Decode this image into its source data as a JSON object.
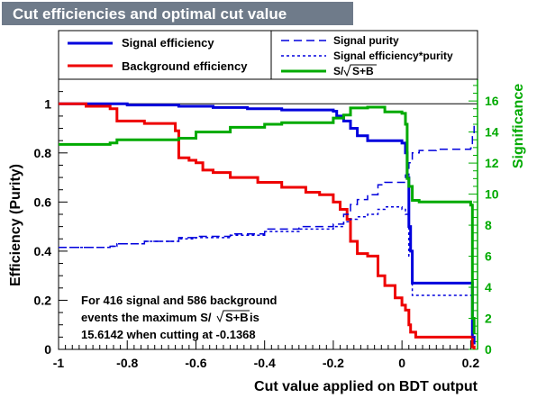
{
  "header": {
    "title": "Cut efficiencies and optimal cut value"
  },
  "legend": {
    "signal_efficiency": "Signal efficiency",
    "background_efficiency": "Background efficiency",
    "signal_purity": "Signal purity",
    "signal_eff_purity": "Signal efficiency*purity",
    "significance_prefix": "S/",
    "significance_root": "S+B"
  },
  "annotation": {
    "line1": "For 416 signal and 586 background",
    "line2_prefix": "events the maximum S/",
    "line2_root": "S+B",
    "line2_suffix": " is",
    "line3": "15.6142 when cutting at -0.1368"
  },
  "colors": {
    "signal": "#0000dd",
    "background": "#ee0000",
    "significance": "#00aa00",
    "title_bg": "#6f7b8a",
    "title_text": "#ffffff"
  },
  "chart_data": {
    "type": "line",
    "xlabel": "Cut value applied on BDT output",
    "ylabel_left": "Efficiency (Purity)",
    "ylabel_right": "Significance",
    "xlim": [
      -1,
      0.22
    ],
    "ylim_left": [
      0,
      1.1
    ],
    "ylim_right": [
      0,
      17.4
    ],
    "xticks": [
      "-1",
      "-0.8",
      "-0.6",
      "-0.4",
      "-0.2",
      "0",
      "0.2"
    ],
    "yticks_left": [
      "0",
      "0.2",
      "0.4",
      "0.6",
      "0.8",
      "1"
    ],
    "yticks_right": [
      "0",
      "2",
      "4",
      "6",
      "8",
      "10",
      "12",
      "14",
      "16"
    ],
    "series": [
      {
        "name": "Signal efficiency",
        "axis": "left",
        "style": "solid",
        "points": [
          [
            -1,
            1
          ],
          [
            -0.9,
            1
          ],
          [
            -0.8,
            0.995
          ],
          [
            -0.65,
            0.99
          ],
          [
            -0.55,
            0.985
          ],
          [
            -0.45,
            0.98
          ],
          [
            -0.35,
            0.975
          ],
          [
            -0.25,
            0.975
          ],
          [
            -0.2,
            0.97
          ],
          [
            -0.19,
            0.95
          ],
          [
            -0.17,
            0.93
          ],
          [
            -0.15,
            0.9
          ],
          [
            -0.13,
            0.87
          ],
          [
            -0.1,
            0.85
          ],
          [
            -0.05,
            0.85
          ],
          [
            0,
            0.84
          ],
          [
            0.01,
            0.8
          ],
          [
            0.015,
            0.7
          ],
          [
            0.02,
            0.5
          ],
          [
            0.025,
            0.4
          ],
          [
            0.03,
            0.27
          ],
          [
            0.2,
            0.27
          ],
          [
            0.205,
            0.05
          ],
          [
            0.21,
            0.02
          ]
        ]
      },
      {
        "name": "Background efficiency",
        "axis": "left",
        "style": "solid",
        "points": [
          [
            -1,
            1
          ],
          [
            -0.92,
            0.99
          ],
          [
            -0.85,
            0.98
          ],
          [
            -0.83,
            0.93
          ],
          [
            -0.75,
            0.92
          ],
          [
            -0.66,
            0.89
          ],
          [
            -0.65,
            0.78
          ],
          [
            -0.62,
            0.77
          ],
          [
            -0.6,
            0.76
          ],
          [
            -0.58,
            0.73
          ],
          [
            -0.55,
            0.72
          ],
          [
            -0.5,
            0.7
          ],
          [
            -0.42,
            0.68
          ],
          [
            -0.35,
            0.66
          ],
          [
            -0.28,
            0.64
          ],
          [
            -0.24,
            0.63
          ],
          [
            -0.2,
            0.6
          ],
          [
            -0.18,
            0.57
          ],
          [
            -0.16,
            0.53
          ],
          [
            -0.15,
            0.44
          ],
          [
            -0.13,
            0.39
          ],
          [
            -0.1,
            0.38
          ],
          [
            -0.07,
            0.3
          ],
          [
            -0.05,
            0.26
          ],
          [
            -0.02,
            0.21
          ],
          [
            0,
            0.18
          ],
          [
            0.01,
            0.16
          ],
          [
            0.02,
            0.1
          ],
          [
            0.025,
            0.07
          ],
          [
            0.04,
            0.05
          ],
          [
            0.2,
            0.05
          ],
          [
            0.205,
            0.01
          ],
          [
            0.21,
            0
          ]
        ]
      },
      {
        "name": "Signal purity",
        "axis": "left",
        "style": "dashed",
        "points": [
          [
            -1,
            0.415
          ],
          [
            -0.85,
            0.42
          ],
          [
            -0.83,
            0.43
          ],
          [
            -0.75,
            0.44
          ],
          [
            -0.65,
            0.455
          ],
          [
            -0.6,
            0.46
          ],
          [
            -0.5,
            0.47
          ],
          [
            -0.4,
            0.49
          ],
          [
            -0.3,
            0.5
          ],
          [
            -0.2,
            0.51
          ],
          [
            -0.17,
            0.55
          ],
          [
            -0.15,
            0.59
          ],
          [
            -0.13,
            0.61
          ],
          [
            -0.1,
            0.63
          ],
          [
            -0.07,
            0.67
          ],
          [
            -0.05,
            0.68
          ],
          [
            0,
            0.68
          ],
          [
            0.01,
            0.71
          ],
          [
            0.02,
            0.76
          ],
          [
            0.03,
            0.8
          ],
          [
            0.05,
            0.81
          ],
          [
            0.1,
            0.815
          ],
          [
            0.2,
            0.82
          ],
          [
            0.205,
            0.88
          ],
          [
            0.21,
            0.91
          ]
        ]
      },
      {
        "name": "Signal efficiency*purity",
        "axis": "left",
        "style": "dotted",
        "points": [
          [
            -1,
            0.415
          ],
          [
            -0.85,
            0.42
          ],
          [
            -0.83,
            0.43
          ],
          [
            -0.75,
            0.44
          ],
          [
            -0.65,
            0.45
          ],
          [
            -0.6,
            0.455
          ],
          [
            -0.5,
            0.465
          ],
          [
            -0.4,
            0.48
          ],
          [
            -0.3,
            0.49
          ],
          [
            -0.2,
            0.5
          ],
          [
            -0.17,
            0.52
          ],
          [
            -0.15,
            0.53
          ],
          [
            -0.13,
            0.54
          ],
          [
            -0.1,
            0.55
          ],
          [
            -0.07,
            0.57
          ],
          [
            -0.05,
            0.58
          ],
          [
            0,
            0.57
          ],
          [
            0.01,
            0.55
          ],
          [
            0.02,
            0.38
          ],
          [
            0.03,
            0.22
          ],
          [
            0.2,
            0.22
          ],
          [
            0.205,
            0.05
          ],
          [
            0.21,
            0.02
          ]
        ]
      },
      {
        "name": "S/√(S+B)",
        "axis": "right",
        "style": "solid",
        "points": [
          [
            -1,
            13.2
          ],
          [
            -0.85,
            13.3
          ],
          [
            -0.83,
            13.5
          ],
          [
            -0.65,
            13.6
          ],
          [
            -0.6,
            14
          ],
          [
            -0.5,
            14.3
          ],
          [
            -0.4,
            14.5
          ],
          [
            -0.35,
            14.6
          ],
          [
            -0.2,
            14.9
          ],
          [
            -0.17,
            15.1
          ],
          [
            -0.15,
            15.55
          ],
          [
            -0.1,
            15.6
          ],
          [
            -0.05,
            15.3
          ],
          [
            0,
            15.2
          ],
          [
            0.01,
            14.5
          ],
          [
            0.015,
            11
          ],
          [
            0.02,
            10.5
          ],
          [
            0.03,
            9.6
          ],
          [
            0.05,
            9.5
          ],
          [
            0.2,
            9.3
          ],
          [
            0.205,
            2
          ],
          [
            0.21,
            1
          ]
        ]
      }
    ]
  }
}
